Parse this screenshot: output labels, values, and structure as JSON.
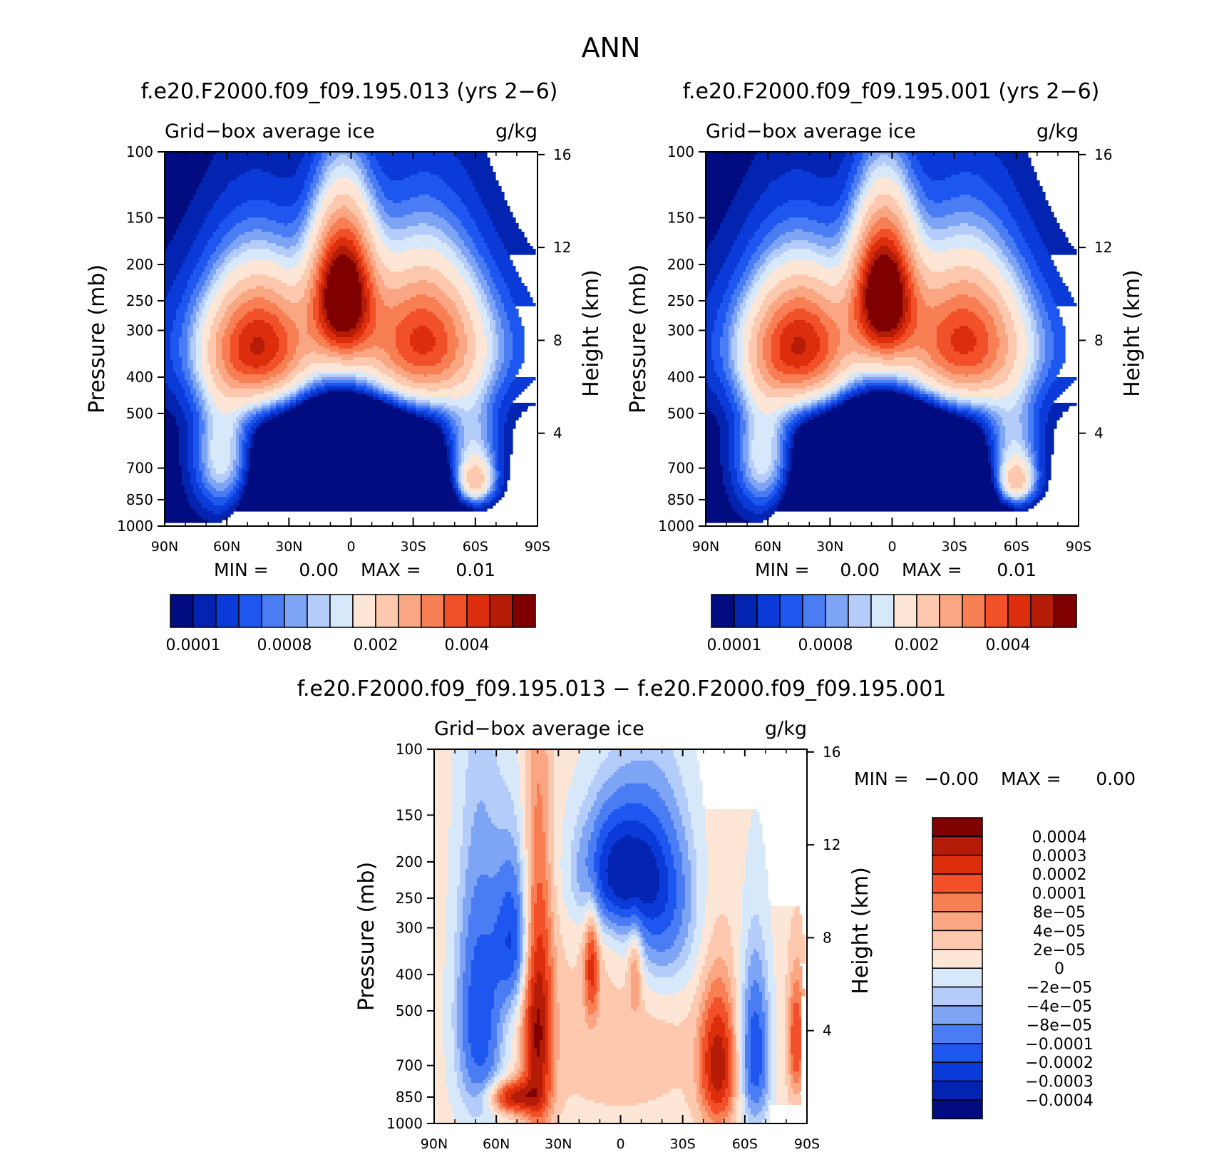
{
  "figure_title": "ANN",
  "colors": {
    "seq": [
      "#000c80",
      "#0224b0",
      "#0a3ad8",
      "#1e56f0",
      "#4a7cf4",
      "#7ea4f6",
      "#b4ccf9",
      "#d8e8fb",
      "#fde6d6",
      "#fdc8ae",
      "#fba682",
      "#f87e54",
      "#f25028",
      "#dc2e0c",
      "#b41c08",
      "#800000"
    ],
    "diff": [
      "#000c80",
      "#0224b0",
      "#0a3ad8",
      "#1e56f0",
      "#4a7cf4",
      "#7ea4f6",
      "#b4ccf9",
      "#d8e8fb",
      "#fde6d6",
      "#fdc8ae",
      "#fba682",
      "#f87e54",
      "#f25028",
      "#dc2e0c",
      "#b41c08",
      "#800000"
    ],
    "missing": "#ffffff"
  },
  "chart_data": [
    {
      "type": "contour",
      "id": "p1",
      "title": "f.e20.F2000.f09_f09.195.013 (yrs 2−6)",
      "left_label": "Grid−box average ice",
      "right_label": "g/kg",
      "ylabel": "Pressure (mb)",
      "y2label": "Height (km)",
      "xticks": [
        "90N",
        "60N",
        "30N",
        "0",
        "30S",
        "60S",
        "90S"
      ],
      "yticks": [
        "100",
        "150",
        "200",
        "250",
        "300",
        "400",
        "500",
        "700",
        "850",
        "1000"
      ],
      "y2ticks": [
        "16",
        "12",
        "8",
        "4"
      ],
      "min_label": "MIN =",
      "min_value": "0.00",
      "max_label": "MAX =",
      "max_value": "0.01",
      "colorbar_labels": [
        "0.0001",
        "0.0008",
        "0.002",
        "0.004"
      ],
      "field": "A"
    },
    {
      "type": "contour",
      "id": "p2",
      "title": "f.e20.F2000.f09_f09.195.001 (yrs 2−6)",
      "left_label": "Grid−box average ice",
      "right_label": "g/kg",
      "ylabel": "Pressure (mb)",
      "y2label": "Height (km)",
      "xticks": [
        "90N",
        "60N",
        "30N",
        "0",
        "30S",
        "60S",
        "90S"
      ],
      "yticks": [
        "100",
        "150",
        "200",
        "250",
        "300",
        "400",
        "500",
        "700",
        "850",
        "1000"
      ],
      "y2ticks": [
        "16",
        "12",
        "8",
        "4"
      ],
      "min_label": "MIN =",
      "min_value": "0.00",
      "max_label": "MAX =",
      "max_value": "0.01",
      "colorbar_labels": [
        "0.0001",
        "0.0008",
        "0.002",
        "0.004"
      ],
      "field": "A"
    },
    {
      "type": "contour",
      "id": "p3",
      "title": "f.e20.F2000.f09_f09.195.013 − f.e20.F2000.f09_f09.195.001",
      "left_label": "Grid−box average ice",
      "right_label": "g/kg",
      "ylabel": "Pressure (mb)",
      "y2label": "Height (km)",
      "xticks": [
        "90N",
        "60N",
        "30N",
        "0",
        "30S",
        "60S",
        "90S"
      ],
      "yticks": [
        "100",
        "150",
        "200",
        "250",
        "300",
        "400",
        "500",
        "700",
        "850",
        "1000"
      ],
      "y2ticks": [
        "16",
        "12",
        "8",
        "4"
      ],
      "min_label": "MIN =",
      "min_value": "−0.00",
      "max_label": "MAX =",
      "max_value": "0.00",
      "colorbar_labels": [
        "0.0004",
        "0.0003",
        "0.0002",
        "0.0001",
        "8e−05",
        "4e−05",
        "2e−05",
        "0",
        "−2e−05",
        "−4e−05",
        "−8e−05",
        "−0.0001",
        "−0.0002",
        "−0.0003",
        "−0.0004"
      ],
      "field": "D"
    }
  ]
}
